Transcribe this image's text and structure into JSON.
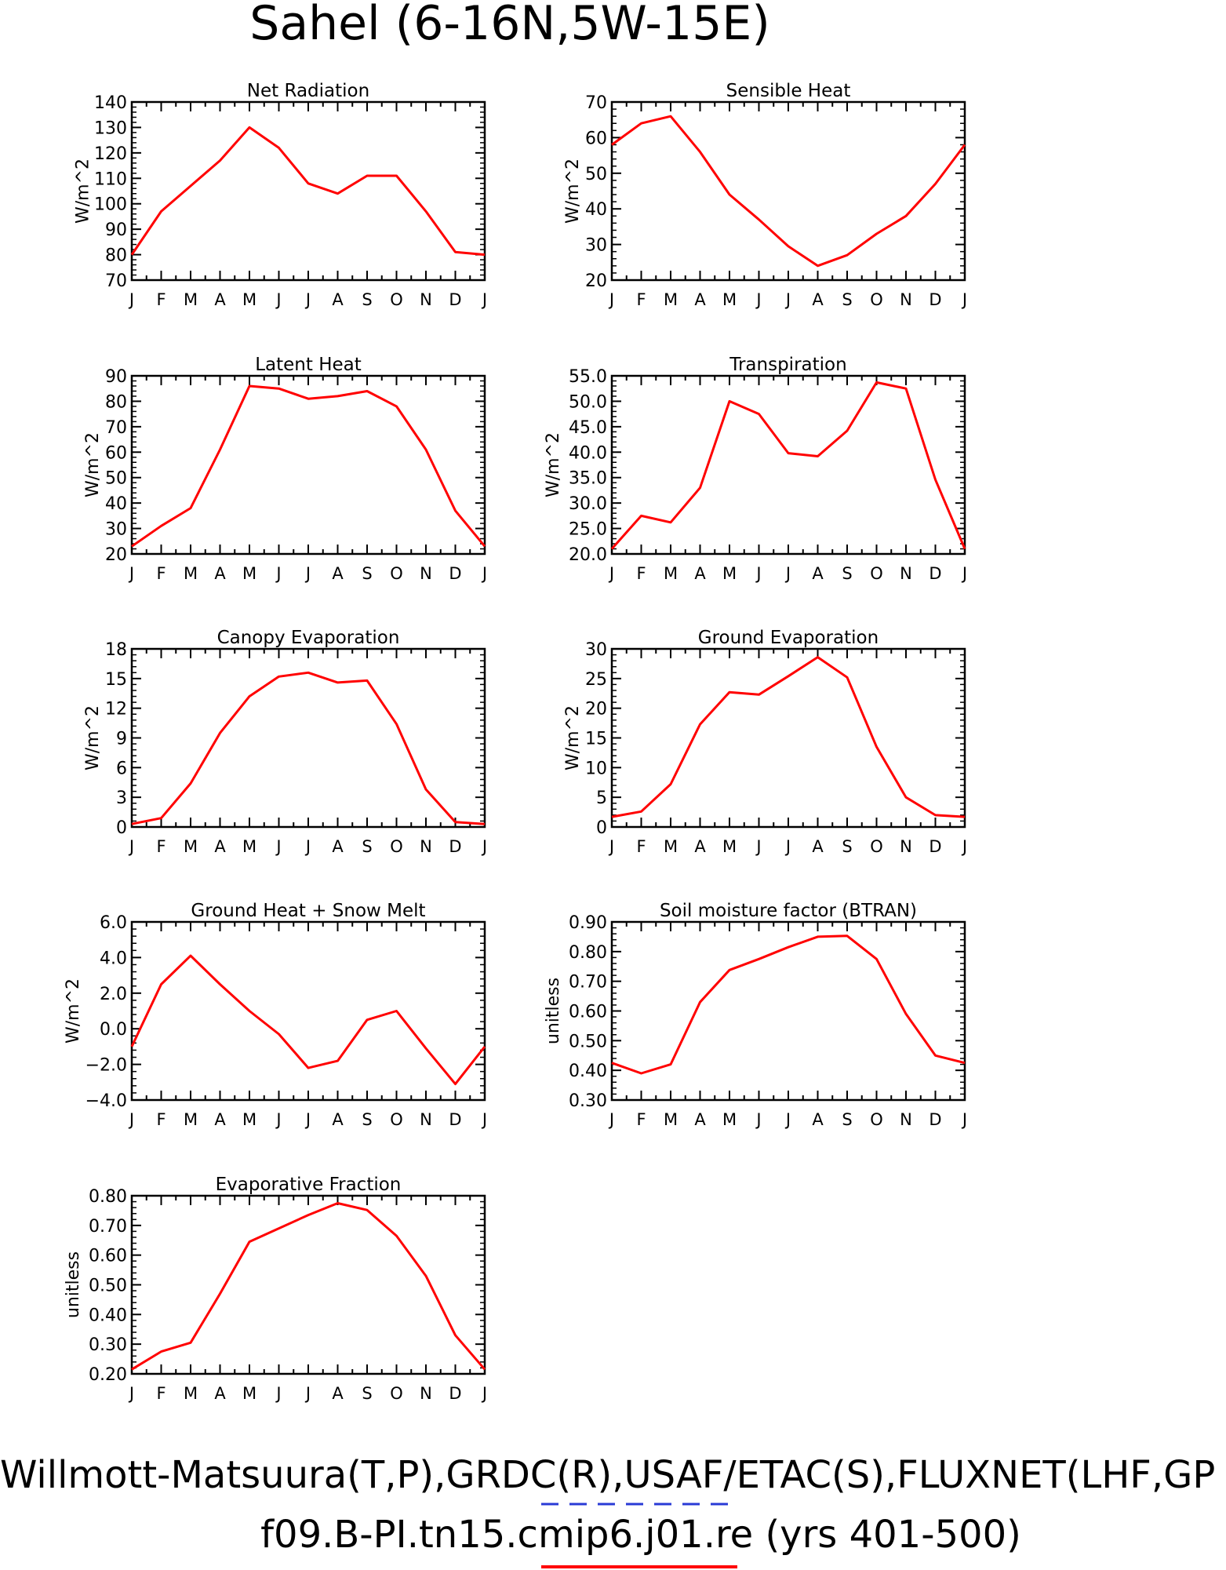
{
  "figure": {
    "title": "Sahel (6-16N,5W-15E)",
    "footer_line1": "Willmott-Matsuura(T,P),GRDC(R),USAF/ETAC(S),FLUXNET(LHF,GP",
    "footer_line2": "f09.B-PI.tn15.cmip6.j01.re (yrs 401-500)",
    "line_color": "#ff0000",
    "obs_dash_color": "#2a3bd6",
    "months": [
      "J",
      "F",
      "M",
      "A",
      "M",
      "J",
      "J",
      "A",
      "S",
      "O",
      "N",
      "D",
      "J"
    ]
  },
  "chart_data": [
    {
      "type": "line",
      "title": "Net Radiation",
      "ylabel": "W/m^2",
      "ylim": [
        70,
        140
      ],
      "yticks": [
        "70",
        "80",
        "90",
        "100",
        "110",
        "120",
        "130",
        "140"
      ],
      "values": [
        80,
        97,
        107,
        117,
        130,
        122,
        108,
        104,
        111,
        111,
        97,
        81,
        80
      ]
    },
    {
      "type": "line",
      "title": "Sensible Heat",
      "ylabel": "W/m^2",
      "ylim": [
        20,
        70
      ],
      "yticks": [
        "20",
        "30",
        "40",
        "50",
        "60",
        "70"
      ],
      "values": [
        58,
        64,
        66,
        56,
        44,
        37,
        29.5,
        24,
        27,
        33,
        38,
        47,
        58
      ]
    },
    {
      "type": "line",
      "title": "Latent Heat",
      "ylabel": "W/m^2",
      "ylim": [
        20,
        90
      ],
      "yticks": [
        "20",
        "30",
        "40",
        "50",
        "60",
        "70",
        "80",
        "90"
      ],
      "values": [
        23,
        31,
        38,
        61,
        86,
        85,
        81,
        82,
        84,
        78,
        61,
        37,
        23
      ]
    },
    {
      "type": "line",
      "title": "Transpiration",
      "ylabel": "W/m^2",
      "ylim": [
        20,
        55
      ],
      "yticks": [
        "20.0",
        "25.0",
        "30.0",
        "35.0",
        "40.0",
        "45.0",
        "50.0",
        "55.0"
      ],
      "values": [
        21,
        27.5,
        26.2,
        33,
        50,
        47.5,
        39.8,
        39.2,
        44.2,
        53.7,
        52.5,
        34.6,
        21
      ]
    },
    {
      "type": "line",
      "title": "Canopy Evaporation",
      "ylabel": "W/m^2",
      "ylim": [
        0,
        18
      ],
      "yticks": [
        "0",
        "3",
        "6",
        "9",
        "12",
        "15",
        "18"
      ],
      "values": [
        0.3,
        0.9,
        4.4,
        9.5,
        13.2,
        15.2,
        15.6,
        14.6,
        14.8,
        10.4,
        3.8,
        0.5,
        0.3
      ]
    },
    {
      "type": "line",
      "title": "Ground Evaporation",
      "ylabel": "W/m^2",
      "ylim": [
        0,
        30
      ],
      "yticks": [
        "0",
        "5",
        "10",
        "15",
        "20",
        "25",
        "30"
      ],
      "values": [
        1.7,
        2.6,
        7.2,
        17.3,
        22.7,
        22.3,
        25.4,
        28.6,
        25.2,
        13.5,
        5.0,
        2.0,
        1.7
      ]
    },
    {
      "type": "line",
      "title": "Ground Heat + Snow Melt",
      "ylabel": "W/m^2",
      "ylim": [
        -4,
        6
      ],
      "yticks": [
        "−4.0",
        "−2.0",
        "0.0",
        "2.0",
        "4.0",
        "6.0"
      ],
      "values": [
        -1.0,
        2.5,
        4.1,
        2.5,
        1.0,
        -0.3,
        -2.2,
        -1.8,
        0.5,
        1.0,
        -1.1,
        -3.1,
        -1.0
      ]
    },
    {
      "type": "line",
      "title": "Soil moisture factor (BTRAN)",
      "ylabel": "unitless",
      "ylim": [
        0.3,
        0.9
      ],
      "yticks": [
        "0.30",
        "0.40",
        "0.50",
        "0.60",
        "0.70",
        "0.80",
        "0.90"
      ],
      "values": [
        0.425,
        0.39,
        0.42,
        0.63,
        0.738,
        0.775,
        0.815,
        0.85,
        0.853,
        0.775,
        0.59,
        0.45,
        0.425
      ]
    },
    {
      "type": "line",
      "title": "Evaporative Fraction",
      "ylabel": "unitless",
      "ylim": [
        0.2,
        0.8
      ],
      "yticks": [
        "0.20",
        "0.30",
        "0.40",
        "0.50",
        "0.60",
        "0.70",
        "0.80"
      ],
      "values": [
        0.215,
        0.275,
        0.305,
        0.47,
        0.645,
        0.69,
        0.735,
        0.775,
        0.752,
        0.665,
        0.53,
        0.33,
        0.215
      ]
    }
  ]
}
